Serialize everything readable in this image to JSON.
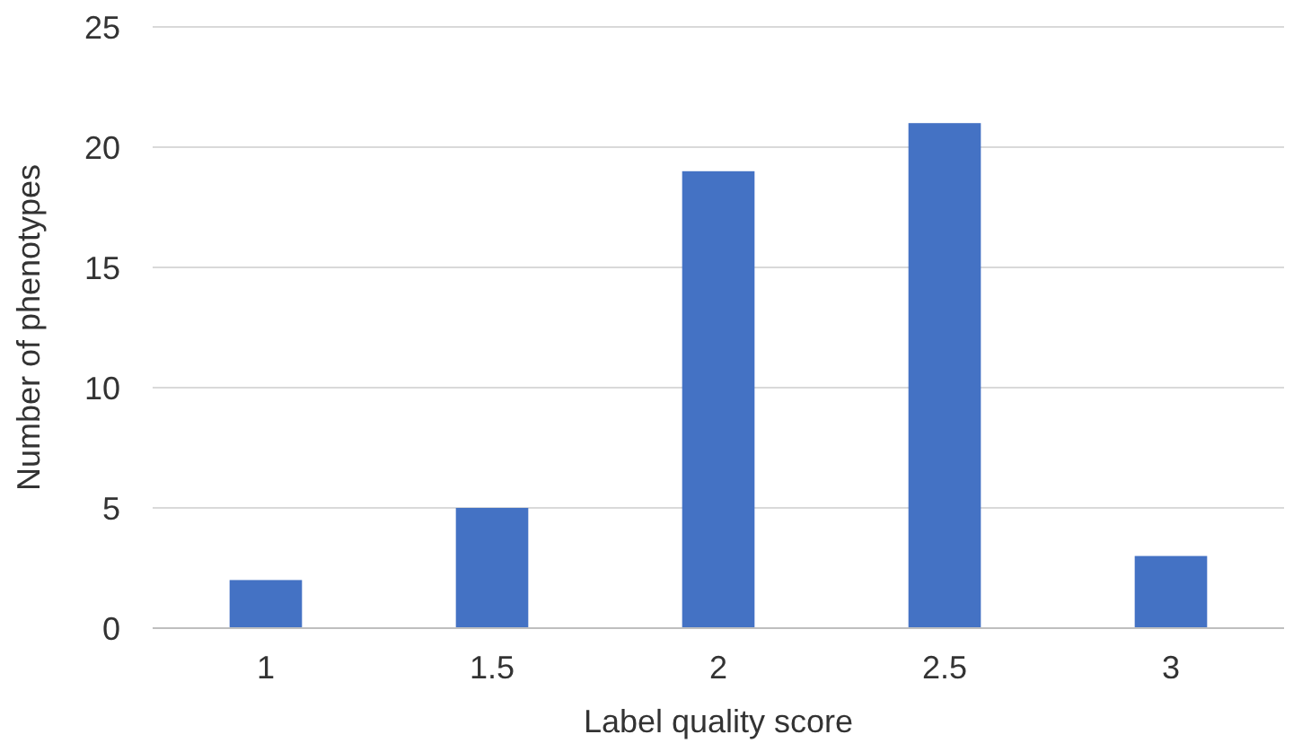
{
  "chart_data": {
    "type": "bar",
    "xlabel": "Label quality score",
    "ylabel": "Number of phenotypes",
    "categories": [
      "1",
      "1.5",
      "2",
      "2.5",
      "3"
    ],
    "values": [
      2,
      5,
      19,
      21,
      3
    ],
    "color": "#4472c4",
    "ylim": [
      0,
      25
    ],
    "yticks": [
      0,
      5,
      10,
      15,
      20,
      25
    ],
    "grid": "y"
  }
}
